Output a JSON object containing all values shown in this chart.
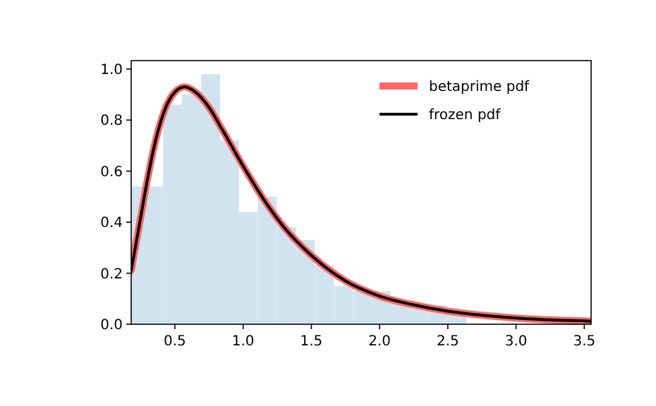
{
  "chart_data": {
    "type": "histogram",
    "xlim": [
      0.18,
      3.55
    ],
    "ylim": [
      0,
      1.033
    ],
    "xticks": [
      {
        "value": 0.5,
        "label": "0.5"
      },
      {
        "value": 1,
        "label": "1.0"
      },
      {
        "value": 1.5,
        "label": "1.5"
      },
      {
        "value": 2,
        "label": "2.0"
      },
      {
        "value": 2.5,
        "label": "2.5"
      },
      {
        "value": 3,
        "label": "3.0"
      },
      {
        "value": 3.5,
        "label": "3.5"
      }
    ],
    "yticks": [
      {
        "value": 0,
        "label": "0.0"
      },
      {
        "value": 0.2,
        "label": "0.2"
      },
      {
        "value": 0.4,
        "label": "0.4"
      },
      {
        "value": 0.6,
        "label": "0.6"
      },
      {
        "value": 0.8,
        "label": "0.8"
      },
      {
        "value": 1,
        "label": "1.0"
      }
    ],
    "bins": [
      0.18,
      0.414,
      0.553,
      0.692,
      0.831,
      0.97,
      1.109,
      1.248,
      1.387,
      1.526,
      1.665,
      1.804,
      1.943,
      2.082,
      2.221,
      2.36,
      2.499,
      2.638
    ],
    "values": [
      0.54,
      0.86,
      0.9,
      0.98,
      0.72,
      0.44,
      0.5,
      0.38,
      0.33,
      0.23,
      0.15,
      0.13,
      0.13,
      0.09,
      0.08,
      0.075,
      0.05
    ],
    "color": "#d2e3f0",
    "legend": "top right",
    "grid": false,
    "series": [
      {
        "name": "betaprime pdf",
        "type": "line",
        "color": "#ff6666",
        "x": [
          0.18,
          0.25,
          0.3,
          0.35,
          0.4,
          0.45,
          0.5,
          0.57,
          0.65,
          0.75,
          0.85,
          1.0,
          1.15,
          1.3,
          1.5,
          1.75,
          2.0,
          2.25,
          2.5,
          2.75,
          3.0,
          3.25,
          3.55
        ],
        "values": [
          0.21,
          0.42,
          0.57,
          0.7,
          0.8,
          0.87,
          0.91,
          0.93,
          0.91,
          0.85,
          0.76,
          0.62,
          0.49,
          0.38,
          0.27,
          0.17,
          0.11,
          0.076,
          0.051,
          0.035,
          0.024,
          0.017,
          0.012
        ]
      },
      {
        "name": "frozen pdf",
        "type": "line",
        "color": "#000000",
        "x": [
          0.18,
          0.25,
          0.3,
          0.35,
          0.4,
          0.45,
          0.5,
          0.57,
          0.65,
          0.75,
          0.85,
          1.0,
          1.15,
          1.3,
          1.5,
          1.75,
          2.0,
          2.25,
          2.5,
          2.75,
          3.0,
          3.25,
          3.55
        ],
        "values": [
          0.21,
          0.42,
          0.57,
          0.7,
          0.8,
          0.87,
          0.91,
          0.93,
          0.91,
          0.85,
          0.76,
          0.62,
          0.49,
          0.38,
          0.27,
          0.17,
          0.11,
          0.076,
          0.051,
          0.035,
          0.024,
          0.017,
          0.012
        ]
      }
    ]
  }
}
